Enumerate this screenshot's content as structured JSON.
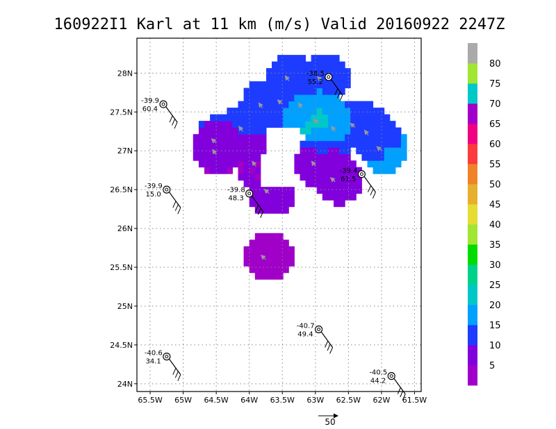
{
  "chart_data": {
    "type": "heatmap",
    "title": "160922I1 Karl at 11 km (m/s) Valid 20160922 2247Z",
    "xlabel": "",
    "ylabel": "",
    "xlim": [
      -65.7,
      -61.4
    ],
    "ylim": [
      23.9,
      28.45
    ],
    "x_ticks": [
      {
        "value": -65.5,
        "label": "65.5W"
      },
      {
        "value": -65.0,
        "label": "65W"
      },
      {
        "value": -64.5,
        "label": "64.5W"
      },
      {
        "value": -64.0,
        "label": "64W"
      },
      {
        "value": -63.5,
        "label": "63.5W"
      },
      {
        "value": -63.0,
        "label": "63W"
      },
      {
        "value": -62.5,
        "label": "62.5W"
      },
      {
        "value": -62.0,
        "label": "62W"
      },
      {
        "value": -61.5,
        "label": "61.5W"
      }
    ],
    "y_ticks": [
      {
        "value": 24.0,
        "label": "24N"
      },
      {
        "value": 24.5,
        "label": "24.5N"
      },
      {
        "value": 25.0,
        "label": "25N"
      },
      {
        "value": 25.5,
        "label": "25.5N"
      },
      {
        "value": 26.0,
        "label": "26N"
      },
      {
        "value": 26.5,
        "label": "26.5N"
      },
      {
        "value": 27.0,
        "label": "27N"
      },
      {
        "value": 27.5,
        "label": "27.5N"
      },
      {
        "value": 28.0,
        "label": "28N"
      }
    ],
    "grid": true,
    "colorbar": {
      "labels": [
        "5",
        "10",
        "15",
        "20",
        "25",
        "30",
        "35",
        "40",
        "45",
        "50",
        "55",
        "60",
        "65",
        "70",
        "75",
        "80"
      ],
      "colors": [
        "#a000c8",
        "#8200dc",
        "#1e3cff",
        "#00a0ff",
        "#00c8c8",
        "#00d28c",
        "#00dc00",
        "#a0e632",
        "#e6dc32",
        "#e6af2d",
        "#f08228",
        "#fa3c3c",
        "#f00082",
        "#a000c8",
        "#00c8c8",
        "#a0e632",
        "#aaaaaa"
      ]
    },
    "wind_field": [
      {
        "lon": -63.8,
        "lat": 27.55,
        "speed": 12
      },
      {
        "lon": -63.5,
        "lat": 27.6,
        "speed": 15
      },
      {
        "lon": -63.2,
        "lat": 27.55,
        "speed": 18
      },
      {
        "lon": -62.95,
        "lat": 27.35,
        "speed": 22
      },
      {
        "lon": -62.7,
        "lat": 27.25,
        "speed": 16
      },
      {
        "lon": -62.4,
        "lat": 27.3,
        "speed": 14
      },
      {
        "lon": -62.2,
        "lat": 27.2,
        "speed": 10
      },
      {
        "lon": -62.0,
        "lat": 27.0,
        "speed": 16
      },
      {
        "lon": -64.1,
        "lat": 27.25,
        "speed": 11
      },
      {
        "lon": -64.5,
        "lat": 27.1,
        "speed": 10
      },
      {
        "lon": -63.9,
        "lat": 26.8,
        "speed": 5
      },
      {
        "lon": -63.7,
        "lat": 26.45,
        "speed": 5
      },
      {
        "lon": -63.0,
        "lat": 26.8,
        "speed": 6
      },
      {
        "lon": -62.7,
        "lat": 26.6,
        "speed": 5
      },
      {
        "lon": -63.4,
        "lat": 27.9,
        "speed": 10
      },
      {
        "lon": -62.9,
        "lat": 27.9,
        "speed": 11
      },
      {
        "lon": -64.5,
        "lat": 26.95,
        "speed": 4
      },
      {
        "lon": -63.75,
        "lat": 25.6,
        "speed": 4
      }
    ],
    "stations": [
      {
        "temp": "-38.5",
        "wind": "55.2",
        "lon": -62.8,
        "lat": 27.95
      },
      {
        "temp": "-39.9",
        "wind": "60.4",
        "lon": -65.3,
        "lat": 27.6
      },
      {
        "temp": "-39.4",
        "wind": "61.5",
        "lon": -62.3,
        "lat": 26.7
      },
      {
        "temp": "-39.9",
        "wind": "15.0",
        "lon": -65.25,
        "lat": 26.5
      },
      {
        "temp": "-39.8",
        "wind": "48.3",
        "lon": -64.0,
        "lat": 26.45
      },
      {
        "temp": "-40.7",
        "wind": "49.4",
        "lon": -62.95,
        "lat": 24.7
      },
      {
        "temp": "-40.6",
        "wind": "34.1",
        "lon": -65.25,
        "lat": 24.35
      },
      {
        "temp": "-40.5",
        "wind": "44.2",
        "lon": -61.85,
        "lat": 24.1
      }
    ],
    "vector_scale": {
      "label": "50",
      "value": 50
    }
  }
}
